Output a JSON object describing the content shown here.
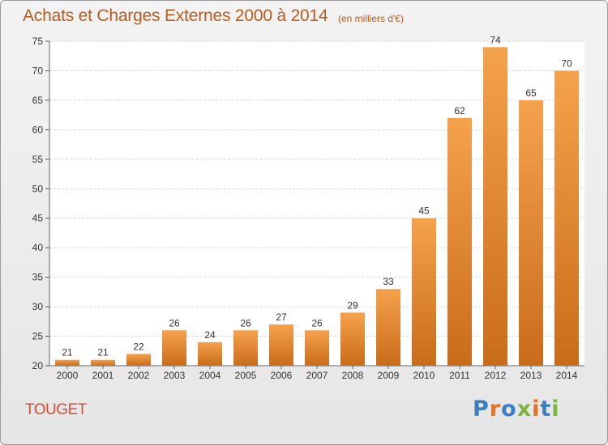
{
  "chart_data": {
    "type": "bar",
    "title": "Achats et Charges Externes 2000 à 2014",
    "subtitle": "(en milliers d'€)",
    "xlabel": "",
    "ylabel": "",
    "categories": [
      "2000",
      "2001",
      "2002",
      "2003",
      "2004",
      "2005",
      "2006",
      "2007",
      "2008",
      "2009",
      "2010",
      "2011",
      "2012",
      "2013",
      "2014"
    ],
    "values": [
      21,
      21,
      22,
      26,
      24,
      26,
      27,
      26,
      29,
      33,
      45,
      62,
      74,
      65,
      70
    ],
    "ylim": [
      20,
      75
    ],
    "yticks": [
      20,
      25,
      30,
      35,
      40,
      45,
      50,
      55,
      60,
      65,
      70,
      75
    ],
    "grid": true,
    "legend": "none",
    "bar_color_light": "#f5a24d",
    "bar_color_dark": "#c96c1a"
  },
  "footer": {
    "commune": "TOUGET",
    "logo_text": "Proxiti",
    "logo_colors": [
      "#3a7fc4",
      "#e0722a",
      "#3a7fc4",
      "#7ab640",
      "#e0722a",
      "#3a7fc4",
      "#7ab640"
    ]
  },
  "colors": {
    "title": "#b85b1c",
    "commune": "#d44e35"
  }
}
